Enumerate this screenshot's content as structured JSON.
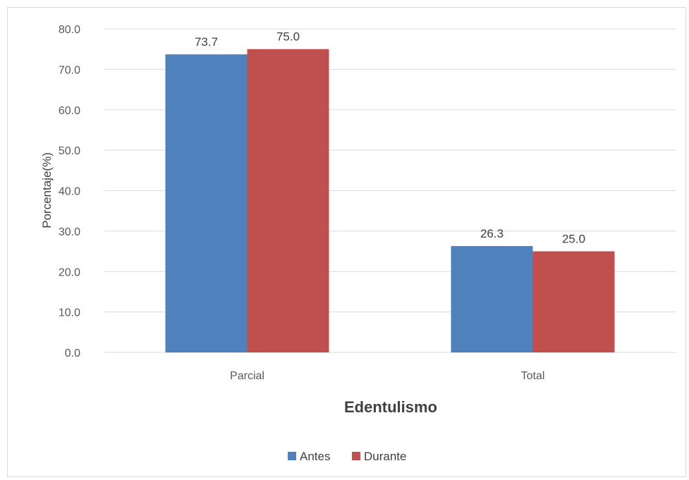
{
  "chart_data": {
    "type": "bar",
    "categories": [
      "Parcial",
      "Total"
    ],
    "series": [
      {
        "name": "Antes",
        "values": [
          73.7,
          26.3
        ],
        "color": "#4f81bd"
      },
      {
        "name": "Durante",
        "values": [
          75.0,
          25.0
        ],
        "color": "#c0504d"
      }
    ],
    "xlabel": "Edentulismo",
    "ylabel": "Porcentaje(%)",
    "ylim": [
      0,
      80
    ],
    "yticks": [
      "0.0",
      "10.0",
      "20.0",
      "30.0",
      "40.0",
      "50.0",
      "60.0",
      "70.0",
      "80.0"
    ],
    "data_labels": [
      [
        "73.7",
        "26.3"
      ],
      [
        "75.0",
        "25.0"
      ]
    ],
    "grid": true,
    "legend_position": "bottom"
  }
}
